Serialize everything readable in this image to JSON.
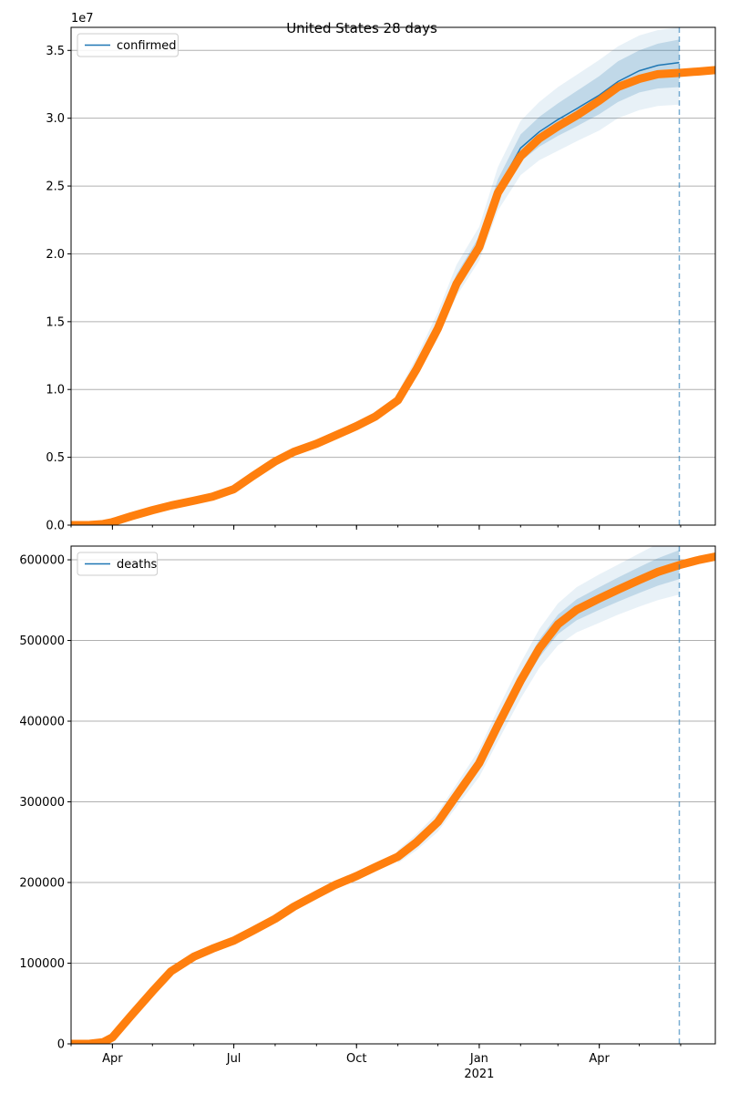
{
  "figure": {
    "title": "United States 28 days"
  },
  "chart_data": [
    {
      "type": "line",
      "legend": [
        "confirmed"
      ],
      "legend_position": "top-left",
      "grid": "horizontal",
      "offset_label": "1e7",
      "ylim": [
        0,
        36700000
      ],
      "yticks": [
        0,
        5000000,
        10000000,
        15000000,
        20000000,
        25000000,
        30000000,
        35000000
      ],
      "ytick_labels": [
        "0.0",
        "0.5",
        "1.0",
        "1.5",
        "2.0",
        "2.5",
        "3.0",
        "3.5"
      ],
      "xlim": [
        "2020-03-01",
        "2021-06-27"
      ],
      "xticks": [
        "2020-04-01",
        "2020-07-01",
        "2020-10-01",
        "2021-01-01",
        "2021-04-01"
      ],
      "xtick_labels": [
        "Apr",
        "Jul",
        "Oct",
        "Jan",
        "Apr"
      ],
      "xtick_secondary_label": "2021",
      "forecast_start": "2021-05-31",
      "observed": {
        "dates": [
          "2020-03-01",
          "2020-03-15",
          "2020-03-25",
          "2020-04-01",
          "2020-04-15",
          "2020-05-01",
          "2020-05-15",
          "2020-06-01",
          "2020-06-15",
          "2020-07-01",
          "2020-07-15",
          "2020-08-01",
          "2020-08-15",
          "2020-09-01",
          "2020-09-15",
          "2020-10-01",
          "2020-10-15",
          "2020-11-01",
          "2020-11-15",
          "2020-12-01",
          "2020-12-15",
          "2021-01-01",
          "2021-01-15",
          "2021-02-01",
          "2021-02-15",
          "2021-03-01",
          "2021-03-15",
          "2021-04-01",
          "2021-04-15",
          "2021-05-01",
          "2021-05-15",
          "2021-06-01",
          "2021-06-15",
          "2021-06-27"
        ],
        "values": [
          0,
          10000,
          80000,
          220000,
          650000,
          1100000,
          1450000,
          1800000,
          2100000,
          2650000,
          3600000,
          4700000,
          5400000,
          6000000,
          6600000,
          7300000,
          8000000,
          9200000,
          11500000,
          14500000,
          17800000,
          20500000,
          24500000,
          27200000,
          28500000,
          29400000,
          30200000,
          31300000,
          32300000,
          32900000,
          33250000,
          33350000,
          33450000,
          33550000
        ]
      },
      "forecast": {
        "dates": [
          "2020-11-01",
          "2020-11-15",
          "2020-12-01",
          "2020-12-15",
          "2021-01-01",
          "2021-01-15",
          "2021-02-01",
          "2021-02-15",
          "2021-03-01",
          "2021-03-15",
          "2021-04-01",
          "2021-04-15",
          "2021-05-01",
          "2021-05-15",
          "2021-05-31"
        ],
        "values": [
          9300000,
          11700000,
          14700000,
          18000000,
          20700000,
          24800000,
          27800000,
          29000000,
          29900000,
          30700000,
          31700000,
          32700000,
          33500000,
          33900000,
          34100000
        ],
        "band_inner": [
          [
            9100000,
            9500000
          ],
          [
            11400000,
            12000000
          ],
          [
            14300000,
            15100000
          ],
          [
            17500000,
            18500000
          ],
          [
            20100000,
            21300000
          ],
          [
            24000000,
            25500000
          ],
          [
            26800000,
            28800000
          ],
          [
            27900000,
            30100000
          ],
          [
            28700000,
            31100000
          ],
          [
            29400000,
            32000000
          ],
          [
            30300000,
            33100000
          ],
          [
            31200000,
            34200000
          ],
          [
            31900000,
            35000000
          ],
          [
            32200000,
            35500000
          ],
          [
            32300000,
            35800000
          ]
        ],
        "band_outer": [
          [
            8800000,
            9800000
          ],
          [
            11000000,
            12400000
          ],
          [
            13800000,
            15700000
          ],
          [
            16900000,
            19200000
          ],
          [
            19500000,
            22000000
          ],
          [
            23200000,
            26400000
          ],
          [
            25800000,
            29800000
          ],
          [
            26900000,
            31200000
          ],
          [
            27600000,
            32300000
          ],
          [
            28300000,
            33200000
          ],
          [
            29100000,
            34300000
          ],
          [
            30000000,
            35300000
          ],
          [
            30600000,
            36100000
          ],
          [
            30900000,
            36500000
          ],
          [
            31000000,
            36700000
          ]
        ]
      }
    },
    {
      "type": "line",
      "legend": [
        "deaths"
      ],
      "legend_position": "top-left",
      "grid": "horizontal",
      "ylim": [
        0,
        617000
      ],
      "yticks": [
        0,
        100000,
        200000,
        300000,
        400000,
        500000,
        600000
      ],
      "ytick_labels": [
        "0",
        "100000",
        "200000",
        "300000",
        "400000",
        "500000",
        "600000"
      ],
      "xlim": [
        "2020-03-01",
        "2021-06-27"
      ],
      "xticks": [
        "2020-04-01",
        "2020-07-01",
        "2020-10-01",
        "2021-01-01",
        "2021-04-01"
      ],
      "xtick_labels": [
        "Apr",
        "Jul",
        "Oct",
        "Jan",
        "Apr"
      ],
      "xtick_secondary_label": "2021",
      "forecast_start": "2021-05-31",
      "observed": {
        "dates": [
          "2020-03-01",
          "2020-03-15",
          "2020-03-25",
          "2020-04-01",
          "2020-04-15",
          "2020-05-01",
          "2020-05-15",
          "2020-06-01",
          "2020-06-15",
          "2020-07-01",
          "2020-07-15",
          "2020-08-01",
          "2020-08-15",
          "2020-09-01",
          "2020-09-15",
          "2020-10-01",
          "2020-10-15",
          "2020-11-01",
          "2020-11-15",
          "2020-12-01",
          "2020-12-15",
          "2021-01-01",
          "2021-01-15",
          "2021-02-01",
          "2021-02-15",
          "2021-03-01",
          "2021-03-15",
          "2021-04-01",
          "2021-04-15",
          "2021-05-01",
          "2021-05-15",
          "2021-06-01",
          "2021-06-15",
          "2021-06-27"
        ],
        "values": [
          0,
          200,
          2000,
          8000,
          35000,
          65000,
          90000,
          108000,
          118000,
          128000,
          140000,
          155000,
          170000,
          185000,
          197000,
          208000,
          219000,
          232000,
          250000,
          275000,
          308000,
          348000,
          395000,
          450000,
          490000,
          520000,
          538000,
          552000,
          563000,
          575000,
          585000,
          594000,
          600000,
          604000
        ]
      },
      "forecast": {
        "dates": [
          "2020-11-01",
          "2020-11-15",
          "2020-12-01",
          "2020-12-15",
          "2021-01-01",
          "2021-01-15",
          "2021-02-01",
          "2021-02-15",
          "2021-03-01",
          "2021-03-15",
          "2021-04-01",
          "2021-04-15",
          "2021-05-01",
          "2021-05-15",
          "2021-05-31"
        ],
        "values": [
          232000,
          250000,
          275000,
          308000,
          348000,
          395000,
          450000,
          490000,
          520000,
          538000,
          552000,
          563000,
          575000,
          585000,
          594000
        ],
        "band_inner": [
          [
            229000,
            235000
          ],
          [
            246000,
            254000
          ],
          [
            270000,
            280000
          ],
          [
            302000,
            314000
          ],
          [
            341000,
            355000
          ],
          [
            386000,
            404000
          ],
          [
            440000,
            460000
          ],
          [
            479000,
            501000
          ],
          [
            508000,
            532000
          ],
          [
            525000,
            551000
          ],
          [
            538000,
            566000
          ],
          [
            548000,
            578000
          ],
          [
            559000,
            591000
          ],
          [
            568000,
            602000
          ],
          [
            576000,
            612000
          ]
        ],
        "band_outer": [
          [
            224000,
            240000
          ],
          [
            240000,
            260000
          ],
          [
            263000,
            287000
          ],
          [
            294000,
            322000
          ],
          [
            331000,
            365000
          ],
          [
            375000,
            415000
          ],
          [
            428000,
            472000
          ],
          [
            466000,
            514000
          ],
          [
            494000,
            546000
          ],
          [
            510000,
            566000
          ],
          [
            522000,
            582000
          ],
          [
            532000,
            594000
          ],
          [
            542000,
            608000
          ],
          [
            550000,
            620000
          ],
          [
            557000,
            631000
          ]
        ]
      }
    }
  ],
  "colors": {
    "observed": "#ff7f0e",
    "forecast": "#1f77b4",
    "band": "#1f77b4",
    "grid": "#b0b0b0"
  }
}
